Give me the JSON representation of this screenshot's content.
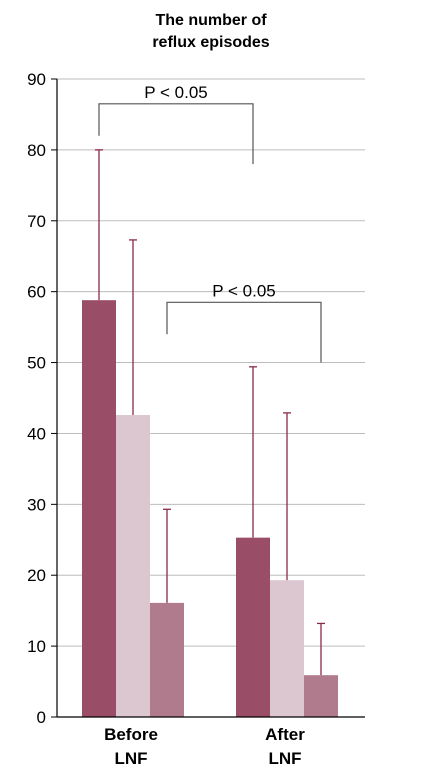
{
  "chart_data": {
    "type": "bar",
    "title_lines": [
      "The number of",
      "reflux episodes"
    ],
    "categories": [
      [
        "Before",
        "LNF"
      ],
      [
        "After",
        "LNF"
      ]
    ],
    "ylim": [
      0,
      90
    ],
    "yticks": [
      0,
      10,
      20,
      30,
      40,
      50,
      60,
      70,
      80,
      90
    ],
    "grid": true,
    "series": [
      {
        "values": [
          58.8,
          25.3
        ],
        "errors": [
          21.2,
          24.1
        ],
        "color": "#9a4d67"
      },
      {
        "values": [
          42.6,
          19.3
        ],
        "errors": [
          24.7,
          23.6
        ],
        "color": "#dcc7d0"
      },
      {
        "values": [
          16.1,
          5.9
        ],
        "errors": [
          13.2,
          7.3
        ],
        "color": "#b07b8d"
      }
    ],
    "annotations": [
      {
        "label": "P < 0.05",
        "left": {
          "category": 0,
          "series": 0
        },
        "right": {
          "category": 1,
          "series": 0
        },
        "y": 86.5,
        "left_end": 82,
        "right_end": 78
      },
      {
        "label": "P < 0.05",
        "left": {
          "category": 0,
          "series": 2
        },
        "right": {
          "category": 1,
          "series": 2
        },
        "y": 58.5,
        "left_end": 54,
        "right_end": 50
      }
    ],
    "colors": {
      "error_bar": "#8b2a45",
      "grid": "#bdbdbd",
      "axis": "#000000",
      "bracket": "#555555"
    }
  }
}
